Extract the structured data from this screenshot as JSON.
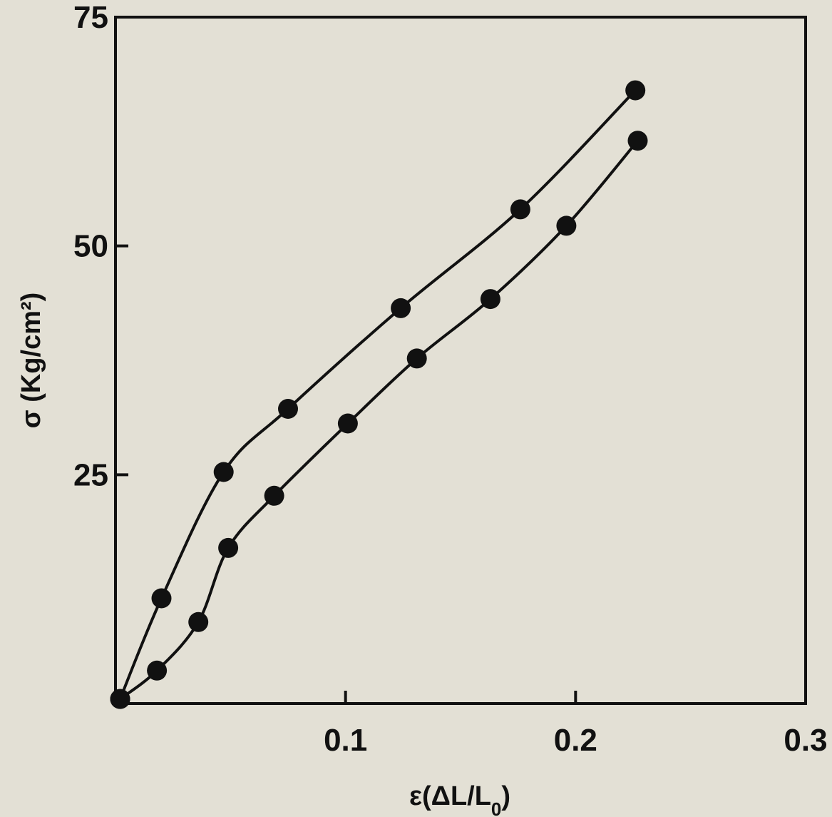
{
  "chart_data": {
    "type": "line",
    "title": "",
    "xlabel": "ε(ΔL/L0)",
    "ylabel": "σ (Kg/cm²)",
    "xlim": [
      0,
      0.3
    ],
    "ylim": [
      0,
      75
    ],
    "x_ticks": [
      0.1,
      0.2,
      0.3
    ],
    "x_tick_labels": [
      "0.1",
      "0.2",
      "0.3"
    ],
    "y_ticks": [
      25,
      50,
      75
    ],
    "y_tick_labels": [
      "25",
      "50",
      "75"
    ],
    "grid": false,
    "legend": "none",
    "marker": "filled-circle",
    "line_color": "#111111",
    "series": [
      {
        "points": [
          [
            0.002,
            0.5
          ],
          [
            0.02,
            11.5
          ],
          [
            0.047,
            25.3
          ],
          [
            0.075,
            32.2
          ],
          [
            0.124,
            43.2
          ],
          [
            0.176,
            54.0
          ],
          [
            0.226,
            67.0
          ]
        ]
      },
      {
        "points": [
          [
            0.002,
            0.5
          ],
          [
            0.018,
            3.6
          ],
          [
            0.036,
            8.9
          ],
          [
            0.049,
            17.0
          ],
          [
            0.069,
            22.7
          ],
          [
            0.101,
            30.6
          ],
          [
            0.131,
            37.7
          ],
          [
            0.163,
            44.2
          ],
          [
            0.196,
            52.2
          ],
          [
            0.227,
            61.5
          ]
        ]
      }
    ]
  }
}
